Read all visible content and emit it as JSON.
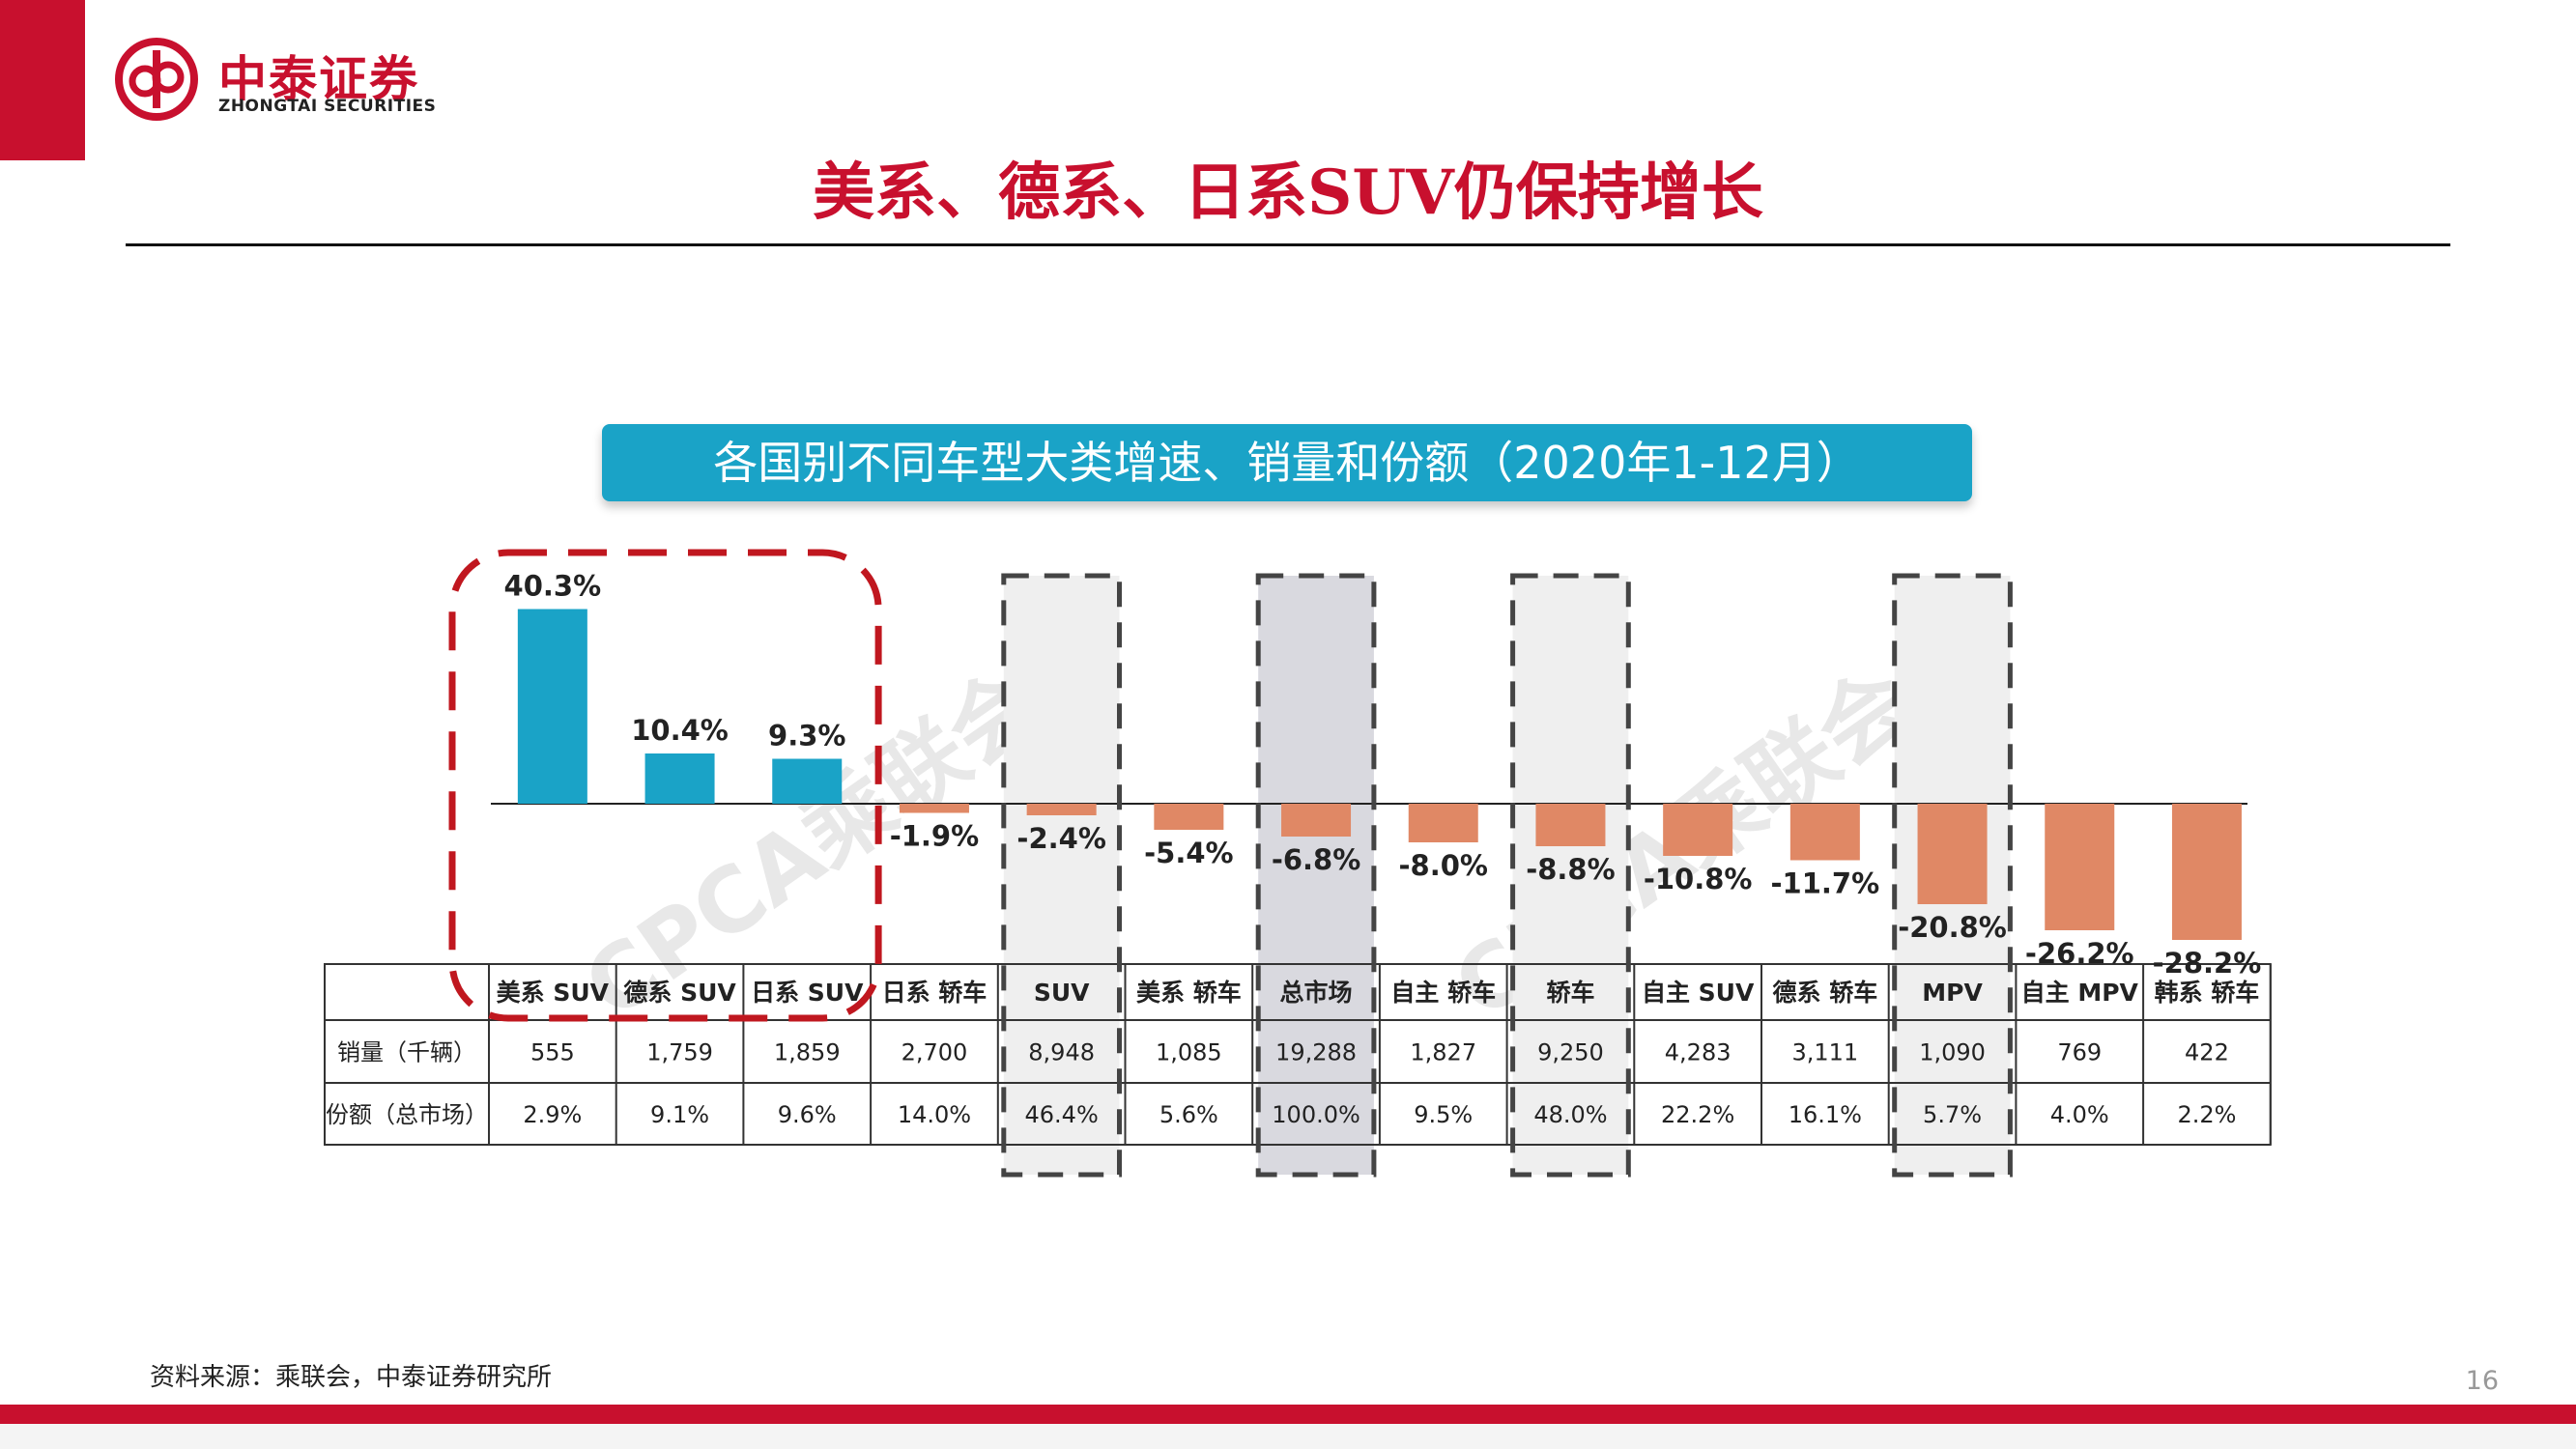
{
  "brand": {
    "name_cn": "中泰证券",
    "name_en": "ZHONGTAI SECURITIES",
    "color": "#c8102e"
  },
  "page_title": "美系、德系、日系SUV仍保持增长",
  "chart_banner": "各国别不同车型大类增速、销量和份额（2020年1-12月）",
  "watermark": "CPCA乘联会",
  "footnote": "资料来源：乘联会，中泰证券研究所",
  "page_number": "16",
  "colors": {
    "positive": "#1aa3c7",
    "negative": "#e08865",
    "highlight_red": "#c0171f",
    "dash_box": "#444444",
    "shade": "#efefef",
    "shade_dark": "#d9d9df"
  },
  "chart_data": {
    "type": "bar",
    "categories": [
      "美系 SUV",
      "德系 SUV",
      "日系 SUV",
      "日系 轿车",
      "SUV",
      "美系 轿车",
      "总市场",
      "自主 轿车",
      "轿车",
      "自主 SUV",
      "德系 轿车",
      "MPV",
      "自主 MPV",
      "韩系 轿车"
    ],
    "values": [
      40.3,
      10.4,
      9.3,
      -1.9,
      -2.4,
      -5.4,
      -6.8,
      -8.0,
      -8.8,
      -10.8,
      -11.7,
      -20.8,
      -26.2,
      -28.2
    ],
    "value_labels": [
      "40.3%",
      "10.4%",
      "9.3%",
      "-1.9%",
      "-2.4%",
      "-5.4%",
      "-6.8%",
      "-8.0%",
      "-8.8%",
      "-10.8%",
      "-11.7%",
      "-20.8%",
      "-26.2%",
      "-28.2%"
    ],
    "ylabel": "",
    "xlabel": "",
    "ylim": [
      -30,
      42
    ],
    "table": {
      "row_labels": [
        "销量（千辆）",
        "份额（总市场）"
      ],
      "sales": [
        "555",
        "1,759",
        "1,859",
        "2,700",
        "8,948",
        "1,085",
        "19,288",
        "1,827",
        "9,250",
        "4,283",
        "3,111",
        "1,090",
        "769",
        "422"
      ],
      "share": [
        "2.9%",
        "9.1%",
        "9.6%",
        "14.0%",
        "46.4%",
        "5.6%",
        "100.0%",
        "9.5%",
        "48.0%",
        "22.2%",
        "16.1%",
        "5.7%",
        "4.0%",
        "2.2%"
      ]
    },
    "highlight_group": [
      0,
      1,
      2
    ],
    "dashed_columns": [
      4,
      6,
      8,
      11
    ],
    "dark_shaded_column": 6
  }
}
